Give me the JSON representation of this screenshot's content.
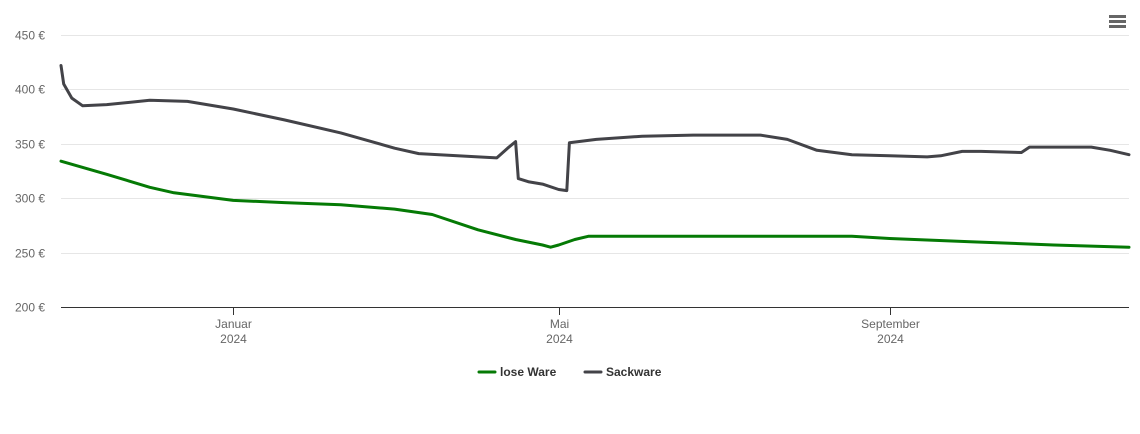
{
  "chart_data": {
    "type": "line",
    "title": "",
    "xlabel": "",
    "ylabel": "",
    "y_unit": "€",
    "ylim": [
      200,
      450
    ],
    "y_ticks": [
      {
        "value": 200,
        "label": "200 €"
      },
      {
        "value": 250,
        "label": "250 €"
      },
      {
        "value": 300,
        "label": "300 €"
      },
      {
        "value": 350,
        "label": "350 €"
      },
      {
        "value": 400,
        "label": "400 €"
      },
      {
        "value": 450,
        "label": "450 €"
      }
    ],
    "xlim": [
      "2023-10-29",
      "2024-11-29"
    ],
    "x_ticks": [
      {
        "date": "2024-01-01",
        "label": "Januar",
        "label2": "2024"
      },
      {
        "date": "2024-05-01",
        "label": "Mai",
        "label2": "2024"
      },
      {
        "date": "2024-09-01",
        "label": "September",
        "label2": "2024"
      }
    ],
    "grid": true,
    "legend_position": "bottom-center",
    "series": [
      {
        "name": "lose Ware",
        "color": "#057a05",
        "points": [
          [
            "2023-10-29",
            334
          ],
          [
            "2023-11-15",
            322
          ],
          [
            "2023-12-01",
            310
          ],
          [
            "2023-12-10",
            305
          ],
          [
            "2024-01-01",
            298
          ],
          [
            "2024-01-20",
            296
          ],
          [
            "2024-02-10",
            294
          ],
          [
            "2024-03-01",
            290
          ],
          [
            "2024-03-15",
            285
          ],
          [
            "2024-04-01",
            271
          ],
          [
            "2024-04-15",
            262
          ],
          [
            "2024-04-25",
            257
          ],
          [
            "2024-04-28",
            255
          ],
          [
            "2024-05-01",
            257
          ],
          [
            "2024-05-07",
            262
          ],
          [
            "2024-05-12",
            265
          ],
          [
            "2024-06-01",
            265
          ],
          [
            "2024-07-01",
            265
          ],
          [
            "2024-08-18",
            265
          ],
          [
            "2024-09-01",
            263
          ],
          [
            "2024-10-01",
            260
          ],
          [
            "2024-11-01",
            257
          ],
          [
            "2024-11-29",
            255
          ]
        ]
      },
      {
        "name": "Sackware",
        "color": "#434348",
        "points": [
          [
            "2023-10-29",
            422
          ],
          [
            "2023-10-30",
            405
          ],
          [
            "2023-11-02",
            392
          ],
          [
            "2023-11-06",
            385
          ],
          [
            "2023-11-15",
            386
          ],
          [
            "2023-12-01",
            390
          ],
          [
            "2023-12-15",
            389
          ],
          [
            "2024-01-01",
            382
          ],
          [
            "2024-01-20",
            372
          ],
          [
            "2024-02-10",
            360
          ],
          [
            "2024-03-01",
            346
          ],
          [
            "2024-03-10",
            341
          ],
          [
            "2024-04-01",
            338
          ],
          [
            "2024-04-08",
            337
          ],
          [
            "2024-04-12",
            346
          ],
          [
            "2024-04-15",
            352
          ],
          [
            "2024-04-16",
            318
          ],
          [
            "2024-04-20",
            315
          ],
          [
            "2024-04-25",
            313
          ],
          [
            "2024-05-01",
            308
          ],
          [
            "2024-05-04",
            307
          ],
          [
            "2024-05-05",
            351
          ],
          [
            "2024-05-15",
            354
          ],
          [
            "2024-06-01",
            357
          ],
          [
            "2024-06-20",
            358
          ],
          [
            "2024-07-15",
            358
          ],
          [
            "2024-07-25",
            354
          ],
          [
            "2024-08-05",
            344
          ],
          [
            "2024-08-18",
            340
          ],
          [
            "2024-09-01",
            339
          ],
          [
            "2024-09-15",
            338
          ],
          [
            "2024-09-20",
            339
          ],
          [
            "2024-09-28",
            343
          ],
          [
            "2024-10-05",
            343
          ],
          [
            "2024-10-20",
            342
          ],
          [
            "2024-10-23",
            347
          ],
          [
            "2024-11-05",
            347
          ],
          [
            "2024-11-15",
            347
          ],
          [
            "2024-11-22",
            344
          ],
          [
            "2024-11-29",
            340
          ]
        ]
      }
    ]
  },
  "toolbar": {
    "menu_icon": "hamburger-menu-icon"
  }
}
